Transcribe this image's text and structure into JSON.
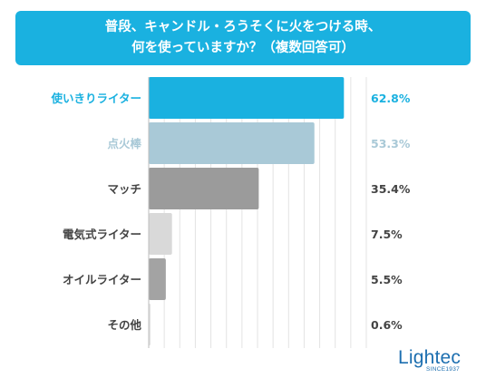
{
  "title": {
    "line1": "普段、キャンドル・ろうそくに火をつける時、",
    "line2": "何を使っていますか？（複数回答可）"
  },
  "chart_data": {
    "type": "bar",
    "orientation": "horizontal",
    "categories": [
      "使いきりライター",
      "点火棒",
      "マッチ",
      "電気式ライター",
      "オイルライター",
      "その他"
    ],
    "values": [
      62.8,
      53.3,
      35.4,
      7.5,
      5.5,
      0.6
    ],
    "value_labels": [
      "62.8%",
      "53.3%",
      "35.4%",
      "7.5%",
      "5.5%",
      "0.6%"
    ],
    "colors": [
      "#1ab1e0",
      "#a9c9d7",
      "#9b9b9b",
      "#d9d9d9",
      "#a3a3a3",
      "#e2e2e2"
    ],
    "label_colors": [
      "#1ab1e0",
      "#a9c9d7",
      "#444444",
      "#444444",
      "#444444",
      "#444444"
    ],
    "xlim": [
      0,
      70
    ],
    "grid": true,
    "legend": "none"
  },
  "logo": {
    "main": "Lightec",
    "sub": "SINCE1937"
  }
}
